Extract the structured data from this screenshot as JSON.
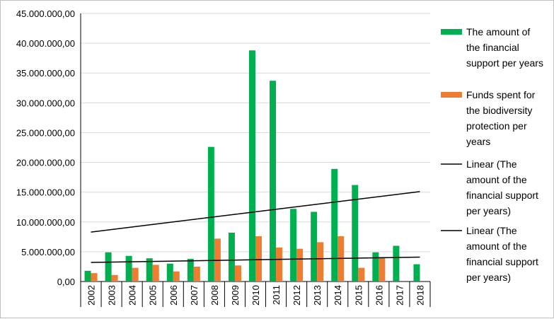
{
  "chart_data": {
    "type": "bar",
    "categories": [
      "2002",
      "2003",
      "2004",
      "2005",
      "2006",
      "2007",
      "2008",
      "2009",
      "2010",
      "2011",
      "2012",
      "2013",
      "2014",
      "2015",
      "2016",
      "2017",
      "2018"
    ],
    "series": [
      {
        "name": "The amount of the financial support per years",
        "color": "#00b050",
        "values": [
          1800000,
          4900000,
          4300000,
          3900000,
          3000000,
          3800000,
          22600000,
          8200000,
          38800000,
          33700000,
          12200000,
          11700000,
          18900000,
          16200000,
          4900000,
          6000000,
          2900000
        ]
      },
      {
        "name": "Funds spent for the biodiversity protection per years",
        "color": "#ed7d31",
        "values": [
          1400000,
          1100000,
          2300000,
          2800000,
          1700000,
          2500000,
          7200000,
          2700000,
          7600000,
          5700000,
          5500000,
          6600000,
          7600000,
          2300000,
          4100000,
          0,
          0
        ]
      }
    ],
    "trendlines": [
      {
        "name": "Linear (The amount of the financial support per years)",
        "color": "#000000",
        "start": 8300000,
        "end": 15100000
      },
      {
        "name": "Linear (The amount of the financial support per years)",
        "color": "#000000",
        "start": 3200000,
        "end": 4100000
      }
    ],
    "ylim": [
      0,
      45000000
    ],
    "yticks": [
      0,
      5000000,
      10000000,
      15000000,
      20000000,
      25000000,
      30000000,
      35000000,
      40000000,
      45000000
    ],
    "ytick_labels": [
      "0,00",
      "5.000.000,00",
      "10.000.000,00",
      "15.000.000,00",
      "20.000.000,00",
      "25.000.000,00",
      "30.000.000,00",
      "35.000.000,00",
      "40.000.000,00",
      "45.000.000,00"
    ],
    "grid": true,
    "legend_position": "right",
    "legend": [
      {
        "kind": "bar",
        "color": "#00b050",
        "lines": [
          "The amount of",
          "the financial",
          "support per years"
        ]
      },
      {
        "kind": "bar",
        "color": "#ed7d31",
        "lines": [
          "Funds spent for",
          "the biodiversity",
          "protection per",
          "years"
        ]
      },
      {
        "kind": "line",
        "color": "#000000",
        "lines": [
          "Linear (The",
          "amount of the",
          "financial support",
          "per years)"
        ]
      },
      {
        "kind": "line",
        "color": "#000000",
        "lines": [
          "Linear (The",
          "amount of the",
          "financial support",
          "per years)"
        ]
      }
    ]
  }
}
